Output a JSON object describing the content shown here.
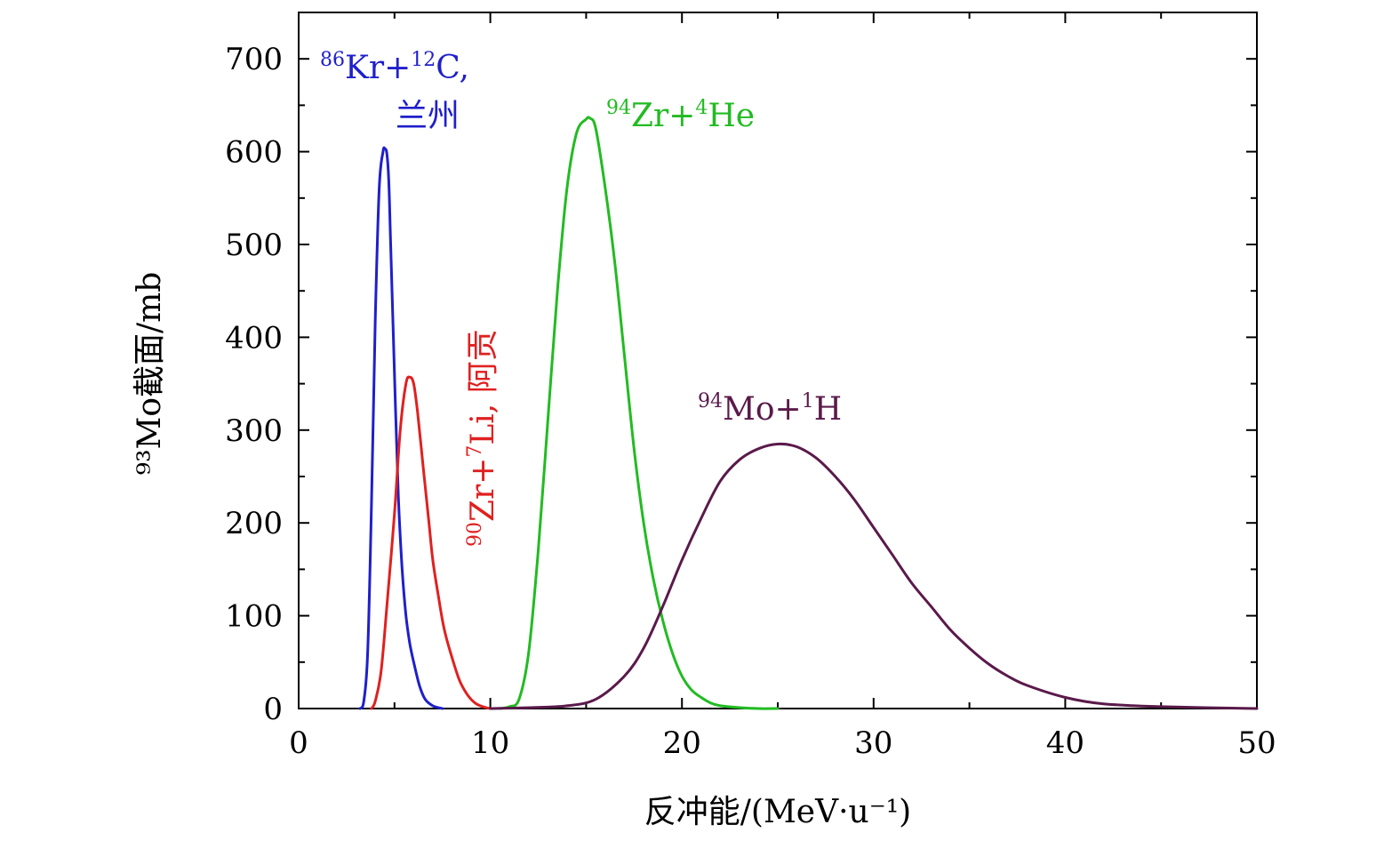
{
  "chart_data": {
    "type": "line",
    "title": "",
    "xlabel": "反冲能/(MeV·u⁻¹)",
    "ylabel": "⁹³Mo截面/mb",
    "xlim": [
      0,
      50
    ],
    "ylim": [
      0,
      750
    ],
    "xticks": [
      0,
      10,
      20,
      30,
      40,
      50
    ],
    "yticks": [
      0,
      100,
      200,
      300,
      400,
      500,
      600,
      700
    ],
    "grid": false,
    "series": [
      {
        "name": "86Kr+12C, 兰州",
        "label_sup1": "86",
        "label_text1": "Kr+",
        "label_sup2": "12",
        "label_text2": "C,",
        "label_line2": "兰州",
        "color": "#1f1fcc",
        "x": [
          3.2,
          3.4,
          3.6,
          3.8,
          4.0,
          4.2,
          4.4,
          4.5,
          4.6,
          4.7,
          4.8,
          5.0,
          5.2,
          5.4,
          5.6,
          5.8,
          6.0,
          6.3,
          6.6,
          7.0,
          7.5
        ],
        "y": [
          0,
          8,
          60,
          220,
          420,
          560,
          600,
          603,
          598,
          570,
          500,
          360,
          230,
          150,
          100,
          70,
          50,
          25,
          10,
          3,
          0
        ]
      },
      {
        "name": "90Zr+7Li, 阿贡",
        "label_sup1": "90",
        "label_text1": "Zr+",
        "label_sup2": "7",
        "label_text2": "Li, 阿贡",
        "color": "#e02020",
        "x": [
          3.8,
          4.0,
          4.3,
          4.6,
          5.0,
          5.3,
          5.6,
          5.8,
          6.0,
          6.2,
          6.5,
          6.8,
          7.0,
          7.3,
          7.6,
          8.0,
          8.4,
          8.8,
          9.2,
          9.6,
          10.0
        ],
        "y": [
          0,
          8,
          40,
          110,
          210,
          300,
          350,
          357,
          350,
          320,
          260,
          200,
          160,
          120,
          85,
          55,
          30,
          15,
          6,
          2,
          0
        ]
      },
      {
        "name": "94Zr+4He",
        "label_sup1": "94",
        "label_text1": "Zr+",
        "label_sup2": "4",
        "label_text2": "He",
        "color": "#22bb22",
        "x": [
          10.5,
          11.0,
          11.5,
          12.0,
          12.5,
          13.0,
          13.5,
          14.0,
          14.5,
          15.0,
          15.2,
          15.5,
          16.0,
          16.5,
          17.0,
          17.5,
          18.0,
          18.5,
          19.0,
          19.5,
          20.0,
          20.5,
          21.0,
          21.5,
          22.0,
          23.0,
          24.0,
          25.0
        ],
        "y": [
          0,
          2,
          10,
          60,
          170,
          310,
          450,
          560,
          620,
          635,
          636,
          625,
          560,
          480,
          380,
          280,
          200,
          140,
          95,
          60,
          35,
          20,
          12,
          6,
          3,
          1,
          0,
          0
        ]
      },
      {
        "name": "94Mo+1H",
        "label_sup1": "94",
        "label_text1": "Mo+",
        "label_sup2": "1",
        "label_text2": "H",
        "color": "#5a1a4a",
        "x": [
          10.0,
          12.0,
          14.0,
          15.5,
          17.0,
          18.0,
          19.0,
          20.0,
          21.0,
          22.0,
          23.0,
          24.0,
          25.0,
          26.0,
          27.0,
          28.0,
          29.0,
          30.0,
          31.0,
          32.0,
          33.0,
          34.0,
          35.0,
          36.0,
          37.0,
          38.0,
          40.0,
          42.0,
          45.0,
          50.0
        ],
        "y": [
          0,
          1,
          3,
          10,
          35,
          65,
          110,
          160,
          205,
          245,
          268,
          280,
          285,
          282,
          270,
          250,
          225,
          195,
          165,
          135,
          110,
          85,
          65,
          48,
          35,
          25,
          12,
          5,
          2,
          0
        ]
      }
    ]
  }
}
